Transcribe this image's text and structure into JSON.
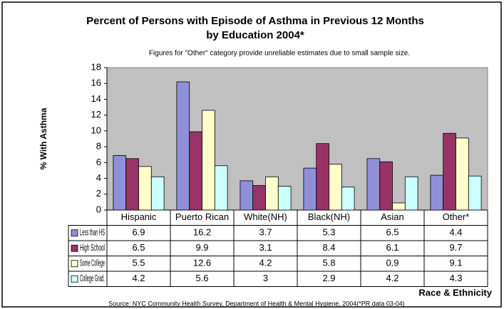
{
  "chart_data": {
    "type": "bar",
    "title": "Percent of Persons with Episode of Asthma in Previous 12 Months",
    "title_line2": "by Education 2004*",
    "subtitle": "Figures for \"Other\" category provide unreliable estimates due to small sample size.",
    "y_label": "% With Asthma",
    "x_label": "Race & Ethnicity",
    "source": "Source: NYC Community Health Survey, Department of Health  & Mental Hygiene, 2004(*PR data 03-04)",
    "categories": [
      "Hispanic",
      "Puerto Rican",
      "White(NH)",
      "Black(NH)",
      "Asian",
      "Other*"
    ],
    "series": [
      {
        "name": "Less than HS",
        "color": "#9090d8",
        "values": [
          6.9,
          16.2,
          3.7,
          5.3,
          6.5,
          4.4
        ]
      },
      {
        "name": "High School",
        "color": "#993366",
        "values": [
          6.5,
          9.9,
          3.1,
          8.4,
          6.1,
          9.7
        ]
      },
      {
        "name": "Some College",
        "color": "#ffffcc",
        "values": [
          5.5,
          12.6,
          4.2,
          5.8,
          0.9,
          9.1
        ]
      },
      {
        "name": "College Grad.",
        "color": "#ccffff",
        "values": [
          4.2,
          5.6,
          3,
          2.9,
          4.2,
          4.3
        ]
      }
    ],
    "ylim": [
      0,
      18
    ],
    "yticks": [
      0,
      2,
      4,
      6,
      8,
      10,
      12,
      14,
      16,
      18
    ],
    "grid": false
  }
}
